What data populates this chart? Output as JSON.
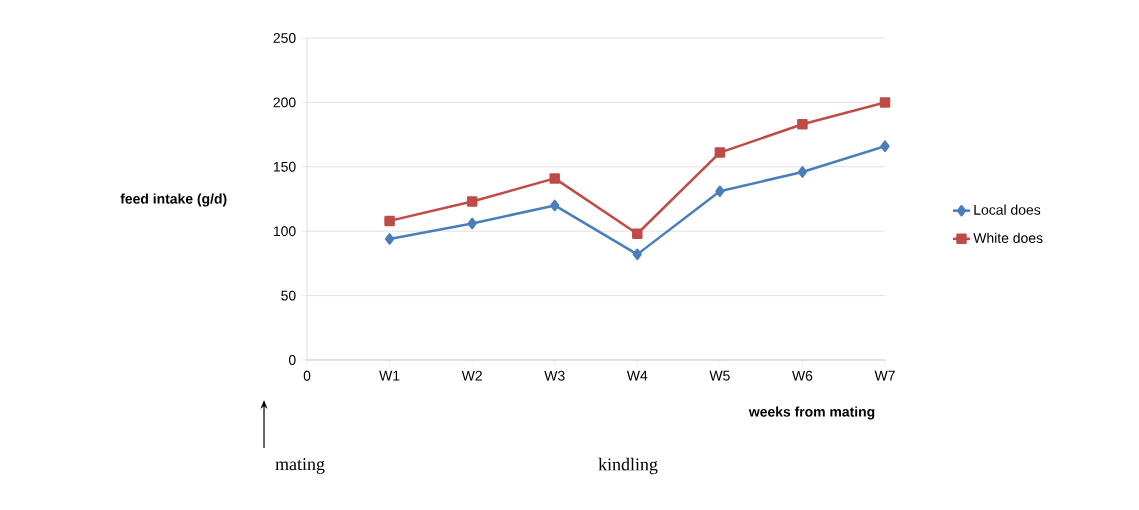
{
  "chart_data": {
    "type": "line",
    "categories": [
      "0",
      "W1",
      "W2",
      "W3",
      "W4",
      "W5",
      "W6",
      "W7"
    ],
    "series": [
      {
        "name": "Local does",
        "color": "#4a7ebb",
        "marker": "diamond",
        "values": [
          null,
          94,
          106,
          120,
          82,
          131,
          146,
          166
        ]
      },
      {
        "name": "White does",
        "color": "#be4b48",
        "marker": "square",
        "values": [
          null,
          108,
          123,
          141,
          98,
          161,
          183,
          200
        ]
      }
    ],
    "ylabel": "feed intake (g/d)",
    "xlabel": "weeks from mating",
    "ylim": [
      0,
      250
    ],
    "yticks": [
      0,
      50,
      100,
      150,
      200,
      250
    ],
    "grid": "y",
    "legend": "right",
    "annotations": [
      "mating",
      "kindling"
    ]
  }
}
